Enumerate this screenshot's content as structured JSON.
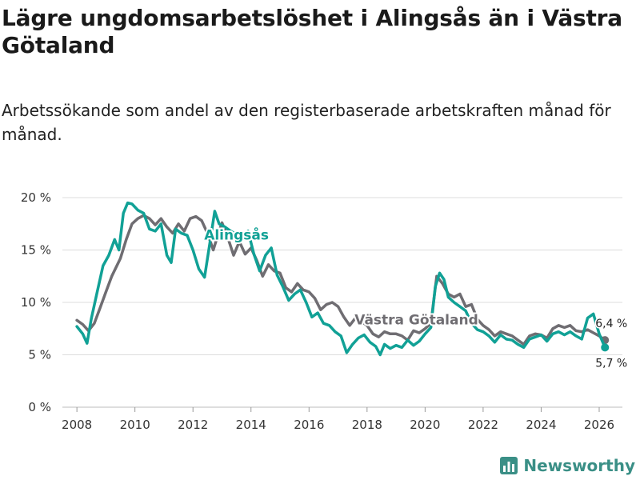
{
  "title": "Lägre ungdomsarbetslöshet i Alingsås än i Västra Götaland",
  "subtitle": "Arbetssökande som andel av den registerbaserade arbetskraften månad för månad.",
  "brand": {
    "name": "Newsworthy",
    "icon": "bar-chart-logo-icon"
  },
  "colors": {
    "alingsas": "#11a196",
    "vg": "#6f6d72",
    "grid": "#dcdcdc",
    "brand": "#3a8f86"
  },
  "chart_data": {
    "type": "line",
    "title": "Lägre ungdomsarbetslöshet i Alingsås än i Västra Götaland",
    "xlabel": "",
    "ylabel": "",
    "xlim": [
      2007.5,
      2026.8
    ],
    "ylim": [
      0,
      20
    ],
    "grid": true,
    "x_ticks": [
      2008,
      2010,
      2012,
      2014,
      2016,
      2018,
      2020,
      2022,
      2024,
      2026
    ],
    "x_tick_labels": [
      "2008",
      "2010",
      "2012",
      "2014",
      "2016",
      "2018",
      "2020",
      "2022",
      "2024",
      "2026"
    ],
    "y_ticks": [
      0,
      5,
      10,
      15,
      20
    ],
    "y_tick_labels": [
      "0 %",
      "5 %",
      "10 %",
      "15 %",
      "20 %"
    ],
    "series": [
      {
        "name": "Västra Götaland",
        "label": "Västra Götaland",
        "color": "#6f6d72",
        "end_label": "6,4 %",
        "points": [
          [
            2008.0,
            8.3
          ],
          [
            2008.2,
            7.9
          ],
          [
            2008.4,
            7.3
          ],
          [
            2008.6,
            8.0
          ],
          [
            2008.8,
            9.5
          ],
          [
            2009.0,
            11.0
          ],
          [
            2009.2,
            12.5
          ],
          [
            2009.5,
            14.2
          ],
          [
            2009.7,
            16.0
          ],
          [
            2009.9,
            17.5
          ],
          [
            2010.1,
            18.0
          ],
          [
            2010.3,
            18.3
          ],
          [
            2010.5,
            18.0
          ],
          [
            2010.7,
            17.4
          ],
          [
            2010.9,
            18.0
          ],
          [
            2011.1,
            17.2
          ],
          [
            2011.3,
            16.6
          ],
          [
            2011.5,
            17.5
          ],
          [
            2011.7,
            16.8
          ],
          [
            2011.9,
            18.0
          ],
          [
            2012.1,
            18.2
          ],
          [
            2012.3,
            17.8
          ],
          [
            2012.5,
            16.6
          ],
          [
            2012.7,
            15.0
          ],
          [
            2012.9,
            16.8
          ],
          [
            2013.0,
            17.6
          ],
          [
            2013.2,
            16.2
          ],
          [
            2013.4,
            14.5
          ],
          [
            2013.6,
            15.8
          ],
          [
            2013.8,
            14.6
          ],
          [
            2014.0,
            15.2
          ],
          [
            2014.2,
            14.0
          ],
          [
            2014.4,
            12.5
          ],
          [
            2014.6,
            13.6
          ],
          [
            2014.8,
            13.0
          ],
          [
            2015.0,
            12.8
          ],
          [
            2015.2,
            11.4
          ],
          [
            2015.4,
            11.0
          ],
          [
            2015.6,
            11.8
          ],
          [
            2015.8,
            11.2
          ],
          [
            2016.0,
            11.0
          ],
          [
            2016.2,
            10.4
          ],
          [
            2016.4,
            9.3
          ],
          [
            2016.6,
            9.8
          ],
          [
            2016.8,
            10.0
          ],
          [
            2017.0,
            9.6
          ],
          [
            2017.2,
            8.6
          ],
          [
            2017.4,
            7.8
          ],
          [
            2017.6,
            8.5
          ],
          [
            2017.8,
            8.2
          ],
          [
            2018.0,
            7.8
          ],
          [
            2018.2,
            7.0
          ],
          [
            2018.4,
            6.7
          ],
          [
            2018.6,
            7.2
          ],
          [
            2018.8,
            7.0
          ],
          [
            2019.0,
            7.0
          ],
          [
            2019.2,
            6.8
          ],
          [
            2019.4,
            6.4
          ],
          [
            2019.6,
            7.3
          ],
          [
            2019.8,
            7.1
          ],
          [
            2020.0,
            7.5
          ],
          [
            2020.2,
            8.0
          ],
          [
            2020.4,
            12.5
          ],
          [
            2020.6,
            11.8
          ],
          [
            2020.8,
            10.8
          ],
          [
            2021.0,
            10.5
          ],
          [
            2021.2,
            10.8
          ],
          [
            2021.4,
            9.6
          ],
          [
            2021.6,
            9.8
          ],
          [
            2021.8,
            8.4
          ],
          [
            2022.0,
            7.8
          ],
          [
            2022.2,
            7.4
          ],
          [
            2022.4,
            6.8
          ],
          [
            2022.6,
            7.2
          ],
          [
            2022.8,
            7.0
          ],
          [
            2023.0,
            6.8
          ],
          [
            2023.2,
            6.4
          ],
          [
            2023.4,
            6.0
          ],
          [
            2023.6,
            6.8
          ],
          [
            2023.8,
            7.0
          ],
          [
            2024.0,
            6.9
          ],
          [
            2024.2,
            6.6
          ],
          [
            2024.4,
            7.5
          ],
          [
            2024.6,
            7.8
          ],
          [
            2024.8,
            7.6
          ],
          [
            2025.0,
            7.8
          ],
          [
            2025.2,
            7.3
          ],
          [
            2025.4,
            7.2
          ],
          [
            2025.6,
            7.4
          ],
          [
            2025.8,
            7.1
          ],
          [
            2026.0,
            6.8
          ],
          [
            2026.2,
            6.4
          ]
        ]
      },
      {
        "name": "Alingsås",
        "label": "Alingsås",
        "color": "#11a196",
        "end_label": "5,7 %",
        "points": [
          [
            2008.0,
            7.7
          ],
          [
            2008.2,
            7.0
          ],
          [
            2008.35,
            6.1
          ],
          [
            2008.5,
            8.5
          ],
          [
            2008.7,
            11.0
          ],
          [
            2008.9,
            13.5
          ],
          [
            2009.1,
            14.5
          ],
          [
            2009.3,
            16.0
          ],
          [
            2009.45,
            15.0
          ],
          [
            2009.6,
            18.5
          ],
          [
            2009.75,
            19.5
          ],
          [
            2009.9,
            19.4
          ],
          [
            2010.1,
            18.8
          ],
          [
            2010.3,
            18.5
          ],
          [
            2010.5,
            17.0
          ],
          [
            2010.7,
            16.8
          ],
          [
            2010.9,
            17.5
          ],
          [
            2011.1,
            14.5
          ],
          [
            2011.25,
            13.8
          ],
          [
            2011.4,
            17.0
          ],
          [
            2011.6,
            16.6
          ],
          [
            2011.8,
            16.4
          ],
          [
            2012.0,
            15.0
          ],
          [
            2012.2,
            13.2
          ],
          [
            2012.4,
            12.4
          ],
          [
            2012.6,
            16.0
          ],
          [
            2012.75,
            18.7
          ],
          [
            2012.9,
            17.5
          ],
          [
            2013.1,
            17.2
          ],
          [
            2013.3,
            16.8
          ],
          [
            2013.5,
            16.5
          ],
          [
            2013.7,
            16.3
          ],
          [
            2013.9,
            16.8
          ],
          [
            2014.1,
            14.6
          ],
          [
            2014.3,
            13.0
          ],
          [
            2014.5,
            14.5
          ],
          [
            2014.7,
            15.2
          ],
          [
            2014.9,
            12.6
          ],
          [
            2015.1,
            11.5
          ],
          [
            2015.3,
            10.2
          ],
          [
            2015.5,
            10.8
          ],
          [
            2015.7,
            11.2
          ],
          [
            2015.9,
            10.0
          ],
          [
            2016.1,
            8.6
          ],
          [
            2016.3,
            9.0
          ],
          [
            2016.5,
            8.0
          ],
          [
            2016.7,
            7.8
          ],
          [
            2016.9,
            7.2
          ],
          [
            2017.1,
            6.8
          ],
          [
            2017.3,
            5.2
          ],
          [
            2017.5,
            6.0
          ],
          [
            2017.7,
            6.6
          ],
          [
            2017.9,
            6.9
          ],
          [
            2018.1,
            6.2
          ],
          [
            2018.3,
            5.8
          ],
          [
            2018.45,
            5.0
          ],
          [
            2018.6,
            6.0
          ],
          [
            2018.8,
            5.6
          ],
          [
            2019.0,
            5.9
          ],
          [
            2019.2,
            5.7
          ],
          [
            2019.4,
            6.4
          ],
          [
            2019.6,
            5.9
          ],
          [
            2019.8,
            6.3
          ],
          [
            2020.0,
            7.0
          ],
          [
            2020.2,
            7.6
          ],
          [
            2020.35,
            11.5
          ],
          [
            2020.5,
            12.8
          ],
          [
            2020.65,
            12.2
          ],
          [
            2020.8,
            10.5
          ],
          [
            2021.0,
            10.0
          ],
          [
            2021.2,
            9.6
          ],
          [
            2021.4,
            9.2
          ],
          [
            2021.6,
            8.0
          ],
          [
            2021.8,
            7.4
          ],
          [
            2022.0,
            7.2
          ],
          [
            2022.2,
            6.8
          ],
          [
            2022.4,
            6.2
          ],
          [
            2022.6,
            6.9
          ],
          [
            2022.8,
            6.5
          ],
          [
            2023.0,
            6.4
          ],
          [
            2023.2,
            6.0
          ],
          [
            2023.4,
            5.7
          ],
          [
            2023.6,
            6.5
          ],
          [
            2023.8,
            6.7
          ],
          [
            2024.0,
            6.9
          ],
          [
            2024.2,
            6.3
          ],
          [
            2024.4,
            7.0
          ],
          [
            2024.6,
            7.2
          ],
          [
            2024.8,
            6.9
          ],
          [
            2025.0,
            7.2
          ],
          [
            2025.2,
            6.8
          ],
          [
            2025.4,
            6.5
          ],
          [
            2025.6,
            8.5
          ],
          [
            2025.8,
            8.9
          ],
          [
            2026.0,
            7.0
          ],
          [
            2026.2,
            5.7
          ]
        ]
      }
    ]
  }
}
